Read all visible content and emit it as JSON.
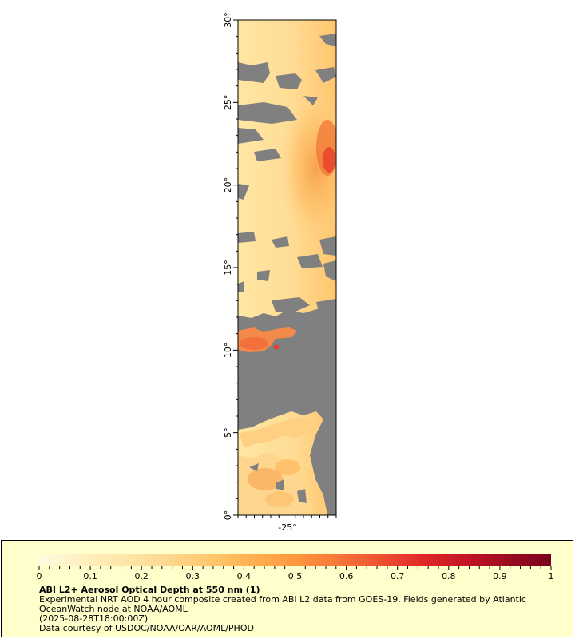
{
  "map": {
    "lat_ticks": [
      "0°",
      "5°",
      "10°",
      "15°",
      "20°",
      "25°",
      "30°"
    ],
    "lon_ticks": [
      "-25°"
    ],
    "no_data_color": "#808080",
    "latitude_range": [
      0,
      30
    ],
    "longitude_tick_value": -25
  },
  "legend": {
    "tick_labels": [
      "0",
      "0.1",
      "0.2",
      "0.3",
      "0.4",
      "0.5",
      "0.6",
      "0.7",
      "0.8",
      "0.9",
      "1"
    ],
    "range": [
      0,
      1
    ],
    "colors": [
      "#fffbe0",
      "#fff0c0",
      "#ffe6a8",
      "#ffd890",
      "#ffc86e",
      "#ffb050",
      "#ff9840",
      "#f87838",
      "#f05030",
      "#e02828",
      "#c41424",
      "#9c0a20",
      "#7a0020"
    ],
    "title": "ABI L2+ Aerosol Optical Depth at 550 nm (1)",
    "line1": "Experimental NRT AOD 4 hour composite created from ABI L2 data from GOES-19. Fields generated by Atlantic",
    "line2": "OceanWatch node at NOAA/AOML",
    "line3": "(2025-08-28T18:00:00Z)",
    "line4": "Data courtesy of USDOC/NOAA/OAR/AOML/PHOD"
  }
}
